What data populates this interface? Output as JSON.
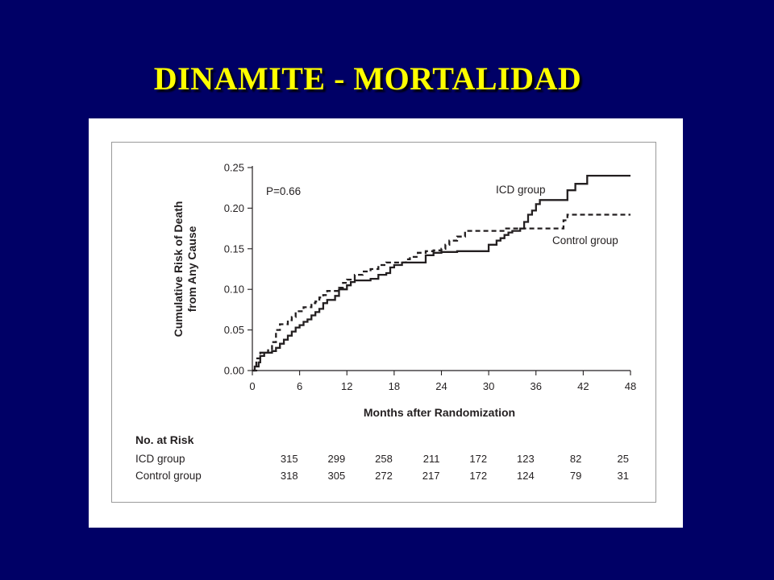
{
  "slide": {
    "title": "DINAMITE - MORTALIDAD"
  },
  "chart_data": {
    "type": "line",
    "title": "",
    "xlabel": "Months after Randomization",
    "ylabel_lines": [
      "Cumulative Risk of Death",
      "from Any Cause"
    ],
    "xlim": [
      0,
      48
    ],
    "ylim": [
      0,
      0.25
    ],
    "x_ticks": [
      0,
      6,
      12,
      18,
      24,
      30,
      36,
      42,
      48
    ],
    "y_ticks": [
      "0.00",
      "0.05",
      "0.10",
      "0.15",
      "0.20",
      "0.25"
    ],
    "grid": false,
    "annotation": "P=0.66",
    "series": [
      {
        "name": "ICD group",
        "style": "solid",
        "points": [
          [
            0,
            0
          ],
          [
            0.3,
            0.005
          ],
          [
            0.8,
            0.01
          ],
          [
            1,
            0.018
          ],
          [
            1.5,
            0.022
          ],
          [
            2.5,
            0.024
          ],
          [
            3,
            0.028
          ],
          [
            3.5,
            0.033
          ],
          [
            4,
            0.038
          ],
          [
            4.5,
            0.043
          ],
          [
            5,
            0.048
          ],
          [
            5.5,
            0.053
          ],
          [
            6,
            0.056
          ],
          [
            6.5,
            0.06
          ],
          [
            7,
            0.063
          ],
          [
            7.5,
            0.068
          ],
          [
            8,
            0.072
          ],
          [
            8.5,
            0.076
          ],
          [
            9,
            0.083
          ],
          [
            9.5,
            0.087
          ],
          [
            10.5,
            0.092
          ],
          [
            11,
            0.1
          ],
          [
            12,
            0.105
          ],
          [
            12.5,
            0.109
          ],
          [
            13,
            0.111
          ],
          [
            15,
            0.113
          ],
          [
            16,
            0.118
          ],
          [
            17,
            0.12
          ],
          [
            17.5,
            0.127
          ],
          [
            18,
            0.13
          ],
          [
            19,
            0.133
          ],
          [
            21,
            0.133
          ],
          [
            22,
            0.142
          ],
          [
            23,
            0.145
          ],
          [
            24,
            0.146
          ],
          [
            25,
            0.146
          ],
          [
            26,
            0.147
          ],
          [
            29,
            0.147
          ],
          [
            30,
            0.155
          ],
          [
            31,
            0.16
          ],
          [
            31.5,
            0.163
          ],
          [
            32,
            0.167
          ],
          [
            32.5,
            0.17
          ],
          [
            33,
            0.172
          ],
          [
            34,
            0.175
          ],
          [
            34.5,
            0.183
          ],
          [
            35,
            0.192
          ],
          [
            35.5,
            0.197
          ],
          [
            36,
            0.205
          ],
          [
            36.5,
            0.21
          ],
          [
            39.5,
            0.21
          ],
          [
            40,
            0.222
          ],
          [
            41,
            0.23
          ],
          [
            42,
            0.23
          ],
          [
            42.5,
            0.24
          ],
          [
            48,
            0.24
          ]
        ]
      },
      {
        "name": "Control group",
        "style": "dashed",
        "points": [
          [
            0,
            0
          ],
          [
            0.5,
            0.015
          ],
          [
            1,
            0.022
          ],
          [
            2,
            0.025
          ],
          [
            2.5,
            0.035
          ],
          [
            3,
            0.05
          ],
          [
            3.5,
            0.057
          ],
          [
            4.5,
            0.062
          ],
          [
            5,
            0.066
          ],
          [
            5.5,
            0.073
          ],
          [
            6.5,
            0.078
          ],
          [
            7.5,
            0.083
          ],
          [
            8,
            0.085
          ],
          [
            8.5,
            0.09
          ],
          [
            9,
            0.093
          ],
          [
            9.5,
            0.098
          ],
          [
            11,
            0.102
          ],
          [
            11.5,
            0.108
          ],
          [
            12,
            0.112
          ],
          [
            13,
            0.118
          ],
          [
            14,
            0.122
          ],
          [
            15,
            0.125
          ],
          [
            16,
            0.13
          ],
          [
            17,
            0.133
          ],
          [
            19,
            0.133
          ],
          [
            19.5,
            0.137
          ],
          [
            20,
            0.14
          ],
          [
            21,
            0.145
          ],
          [
            22,
            0.147
          ],
          [
            23,
            0.148
          ],
          [
            24,
            0.15
          ],
          [
            24.5,
            0.155
          ],
          [
            25,
            0.16
          ],
          [
            26,
            0.165
          ],
          [
            27,
            0.172
          ],
          [
            31,
            0.172
          ],
          [
            32,
            0.175
          ],
          [
            39,
            0.175
          ],
          [
            39.5,
            0.185
          ],
          [
            40,
            0.192
          ],
          [
            48,
            0.192
          ]
        ]
      }
    ],
    "series_labels": {
      "icd": "ICD group",
      "control": "Control group"
    },
    "p_value": "P=0.66",
    "risk_table": {
      "header": "No. at Risk",
      "rows": [
        {
          "label": "ICD group",
          "values": [
            315,
            299,
            258,
            211,
            172,
            123,
            82,
            25
          ]
        },
        {
          "label": "Control group",
          "values": [
            318,
            305,
            272,
            217,
            172,
            124,
            79,
            31
          ]
        }
      ]
    }
  }
}
